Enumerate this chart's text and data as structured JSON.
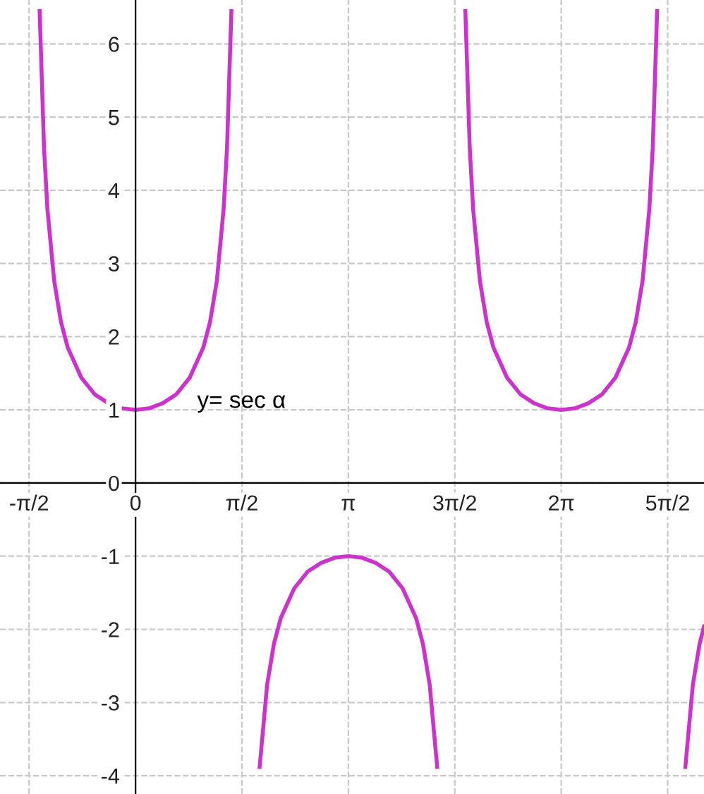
{
  "chart_data": {
    "type": "line",
    "annotations": [
      "y= sec α"
    ],
    "x": [
      -1.415,
      -1.35,
      -1.3,
      -1.2,
      -1.1,
      -1.0,
      -0.8,
      -0.6,
      -0.4,
      -0.2,
      0,
      0.2,
      0.4,
      0.6,
      0.8,
      1.0,
      1.1,
      1.2,
      1.3,
      1.35,
      1.415,
      1.571,
      1.832,
      1.942,
      2.042,
      2.142,
      2.342,
      2.542,
      2.742,
      2.942,
      3.142,
      3.342,
      3.542,
      3.742,
      3.942,
      4.142,
      4.242,
      4.342,
      4.452,
      4.712,
      4.868,
      4.933,
      4.983,
      5.083,
      5.183,
      5.283,
      5.483,
      5.683,
      5.883,
      6.083,
      6.283,
      6.483,
      6.683,
      6.883,
      7.083,
      7.283,
      7.383,
      7.483,
      7.583,
      7.633,
      7.698,
      7.854,
      8.115,
      8.225,
      8.325,
      8.39
    ],
    "series": [
      {
        "color": "#cc33cc",
        "values": [
          6.45,
          4.57,
          3.74,
          2.76,
          2.2,
          1.85,
          1.44,
          1.21,
          1.09,
          1.02,
          1,
          1.02,
          1.09,
          1.21,
          1.44,
          1.85,
          2.2,
          2.76,
          3.74,
          4.57,
          6.45,
          null,
          -3.88,
          -2.76,
          -2.2,
          -1.85,
          -1.44,
          -1.21,
          -1.09,
          -1.02,
          -1,
          -1.02,
          -1.09,
          -1.21,
          -1.44,
          -1.85,
          -2.2,
          -2.76,
          -3.88,
          null,
          6.45,
          4.57,
          3.74,
          2.76,
          2.2,
          1.85,
          1.44,
          1.21,
          1.09,
          1.02,
          1,
          1.02,
          1.09,
          1.21,
          1.44,
          1.85,
          2.2,
          2.76,
          3.74,
          4.57,
          6.45,
          null,
          -3.88,
          -2.76,
          -2.2,
          -1.96
        ]
      }
    ],
    "xlim": [
      -2.0,
      8.39
    ],
    "ylim": [
      -4.25,
      6.6
    ],
    "xticks": [
      {
        "value": -1.571,
        "label": "-π/2"
      },
      0,
      {
        "value": 1.571,
        "label": "π/2"
      },
      {
        "value": 3.142,
        "label": "π"
      },
      {
        "value": 4.712,
        "label": "3π/2"
      },
      {
        "value": 6.283,
        "label": "2π"
      },
      {
        "value": 7.854,
        "label": "5π/2"
      }
    ],
    "yticks": [
      -4,
      -3,
      -2,
      -1,
      0,
      1,
      2,
      3,
      4,
      5,
      6
    ],
    "grid": true,
    "legend": false,
    "marker": "none",
    "line_style": "solid"
  }
}
